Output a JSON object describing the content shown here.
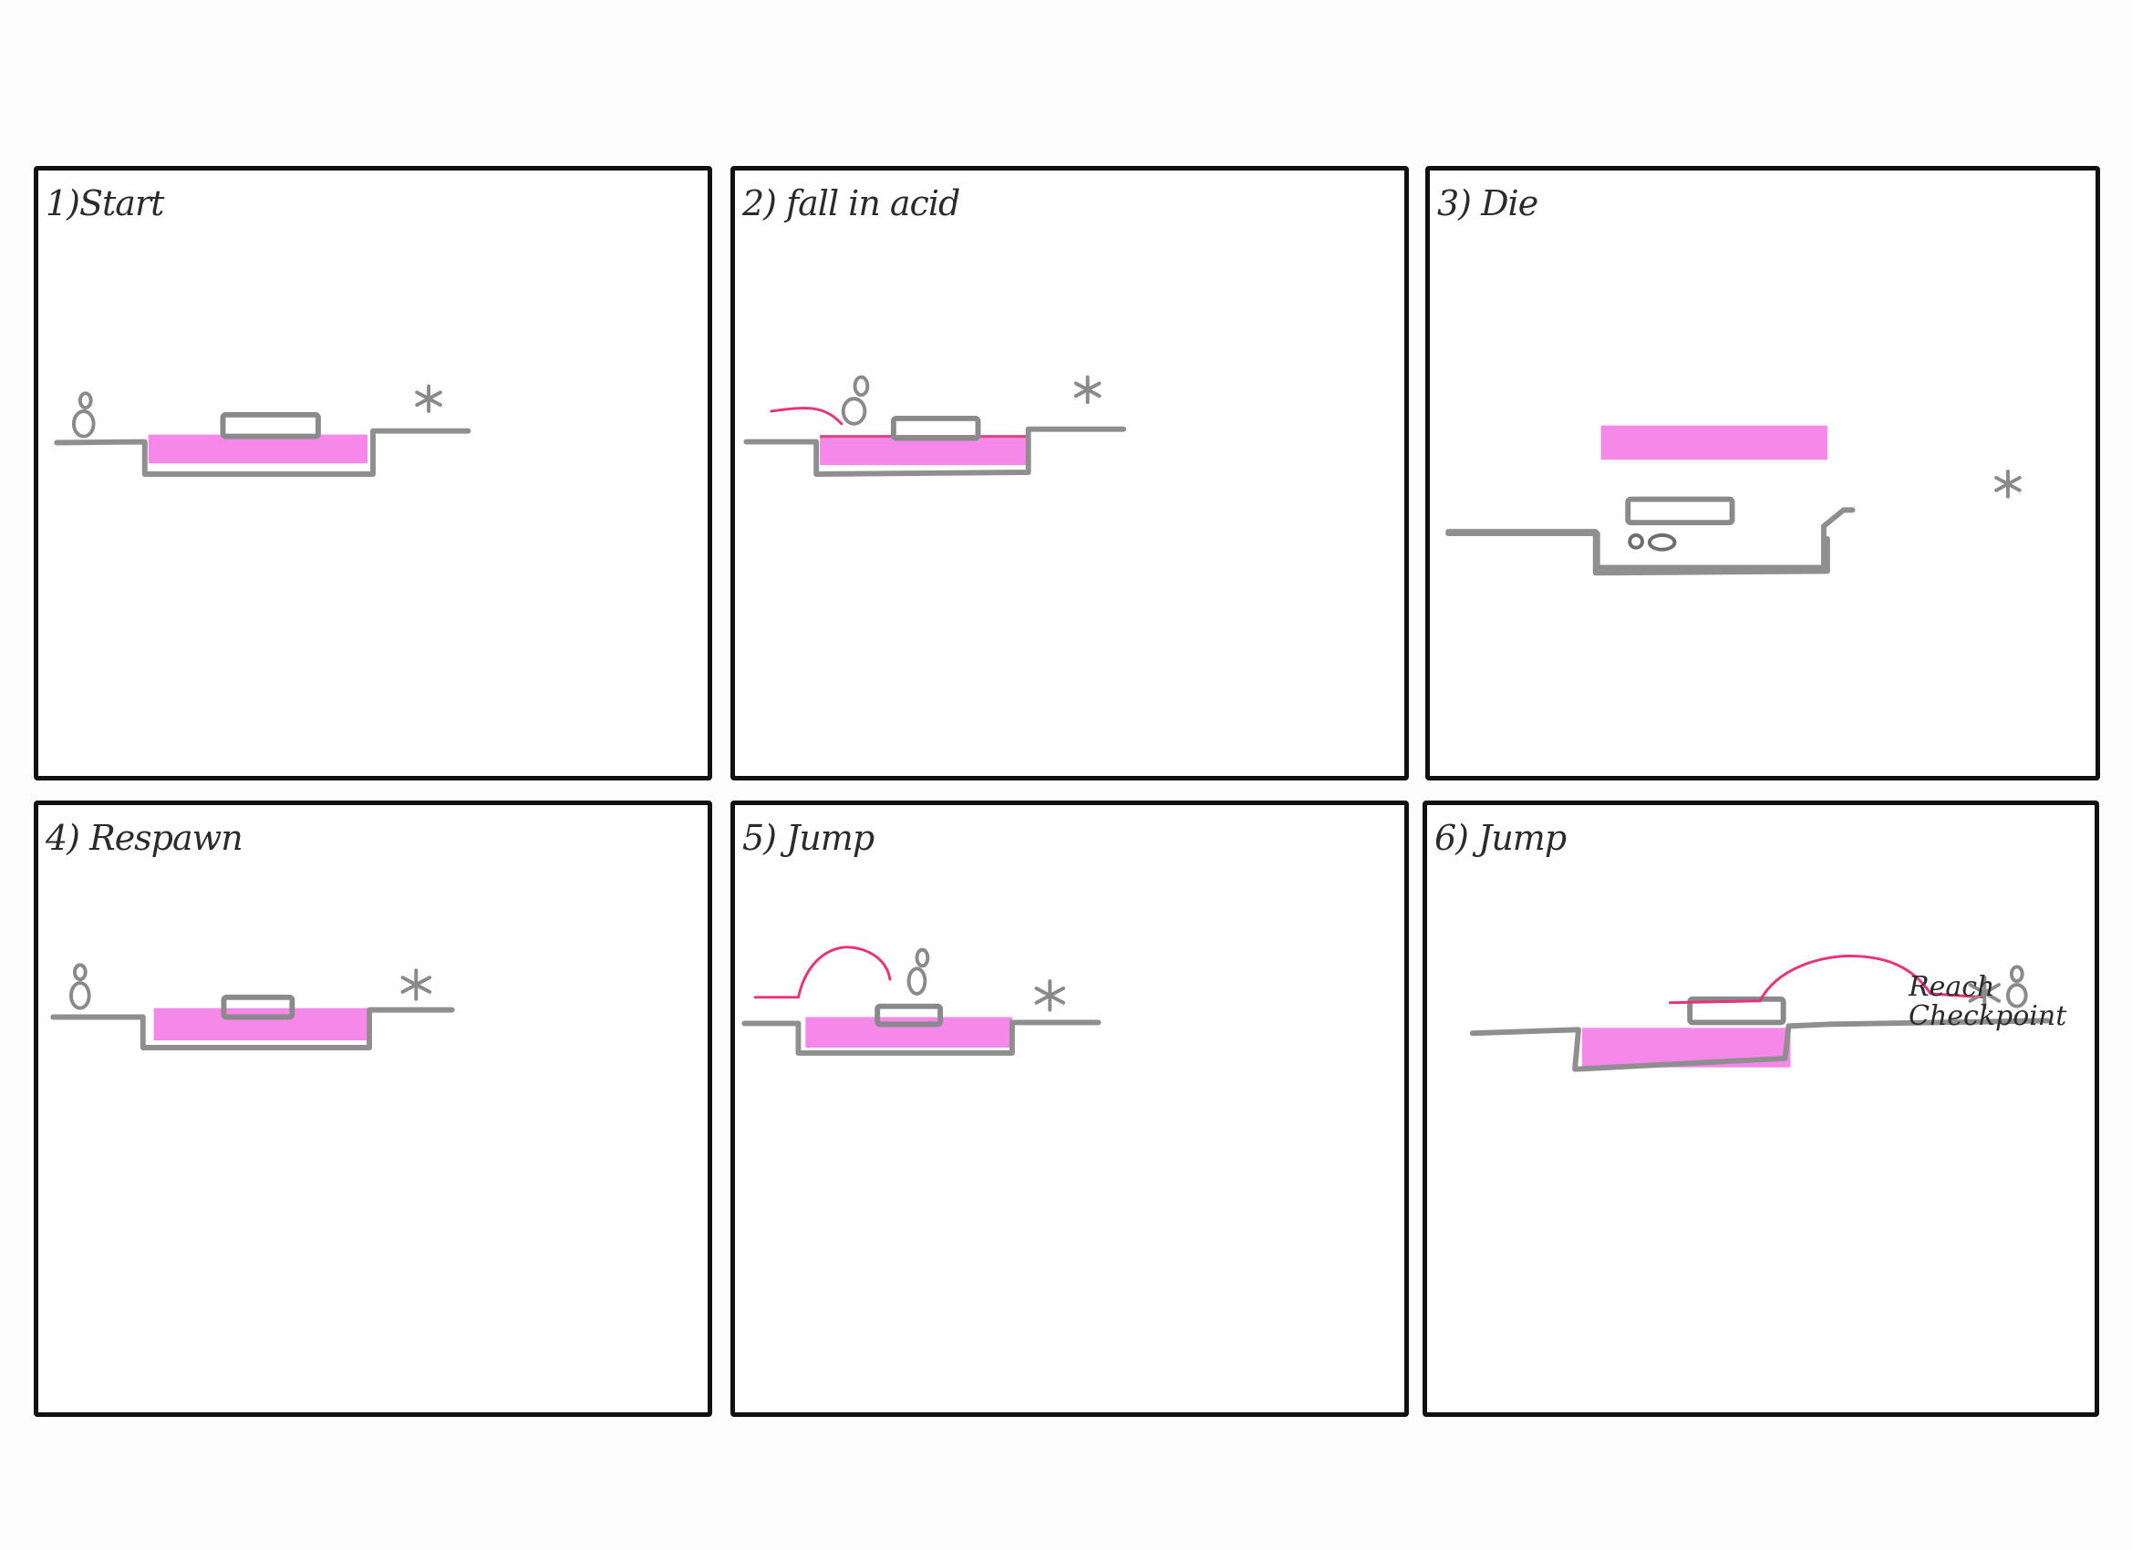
{
  "panels": [
    {
      "label": "1)Start"
    },
    {
      "label": "2) fall in acid"
    },
    {
      "label": "3) Die"
    },
    {
      "label": "4) Respawn"
    },
    {
      "label": "5) Jump"
    },
    {
      "label": "6) Jump"
    }
  ],
  "notes": {
    "checkpoint_line1": "Reach",
    "checkpoint_line2": "Checkpoint"
  },
  "colors": {
    "acid": "#f47be5",
    "ground": "#8f8f8f",
    "trajectory": "#e8327a",
    "frame": "#111111"
  }
}
